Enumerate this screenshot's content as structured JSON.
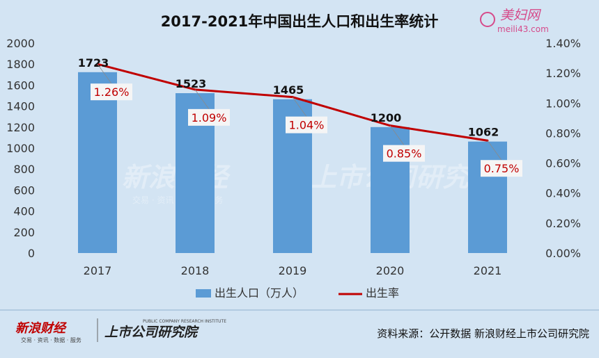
{
  "chart_data": {
    "type": "bar+line",
    "title": "2017-2021年中国出生人口和出生率统计",
    "categories": [
      "2017",
      "2018",
      "2019",
      "2020",
      "2021"
    ],
    "series": [
      {
        "name": "出生人口（万人）",
        "type": "bar",
        "axis": "left",
        "values": [
          1723,
          1523,
          1465,
          1200,
          1062
        ],
        "labels": [
          "1723",
          "1523",
          "1465",
          "1200",
          "1062"
        ],
        "color": "#5b9bd5"
      },
      {
        "name": "出生率",
        "type": "line",
        "axis": "right",
        "values": [
          1.26,
          1.09,
          1.04,
          0.85,
          0.75
        ],
        "labels": [
          "1.26%",
          "1.09%",
          "1.04%",
          "0.85%",
          "0.75%"
        ],
        "color": "#c00000"
      }
    ],
    "y_left": {
      "min": 0,
      "max": 2000,
      "ticks": [
        "0",
        "200",
        "400",
        "600",
        "800",
        "1000",
        "1200",
        "1400",
        "1600",
        "1800",
        "2000"
      ]
    },
    "y_right": {
      "min": 0,
      "max": 1.4,
      "ticks": [
        "0.00%",
        "0.20%",
        "0.40%",
        "0.60%",
        "0.80%",
        "1.00%",
        "1.20%",
        "1.40%"
      ]
    },
    "legend_position": "bottom",
    "grid": false
  },
  "watermark": {
    "logo_top": "美妇网",
    "logo_bottom": "meili43.com",
    "sina_brand": "新浪财经",
    "sina_sub": "交易 · 资讯 · 数据 · 服务",
    "institute": "上市公司研究院",
    "institute_en": "PUBLIC COMPANY RESEARCH INSTITUTE"
  },
  "footer": {
    "source": "资料来源：公开数据 新浪财经上市公司研究院"
  }
}
